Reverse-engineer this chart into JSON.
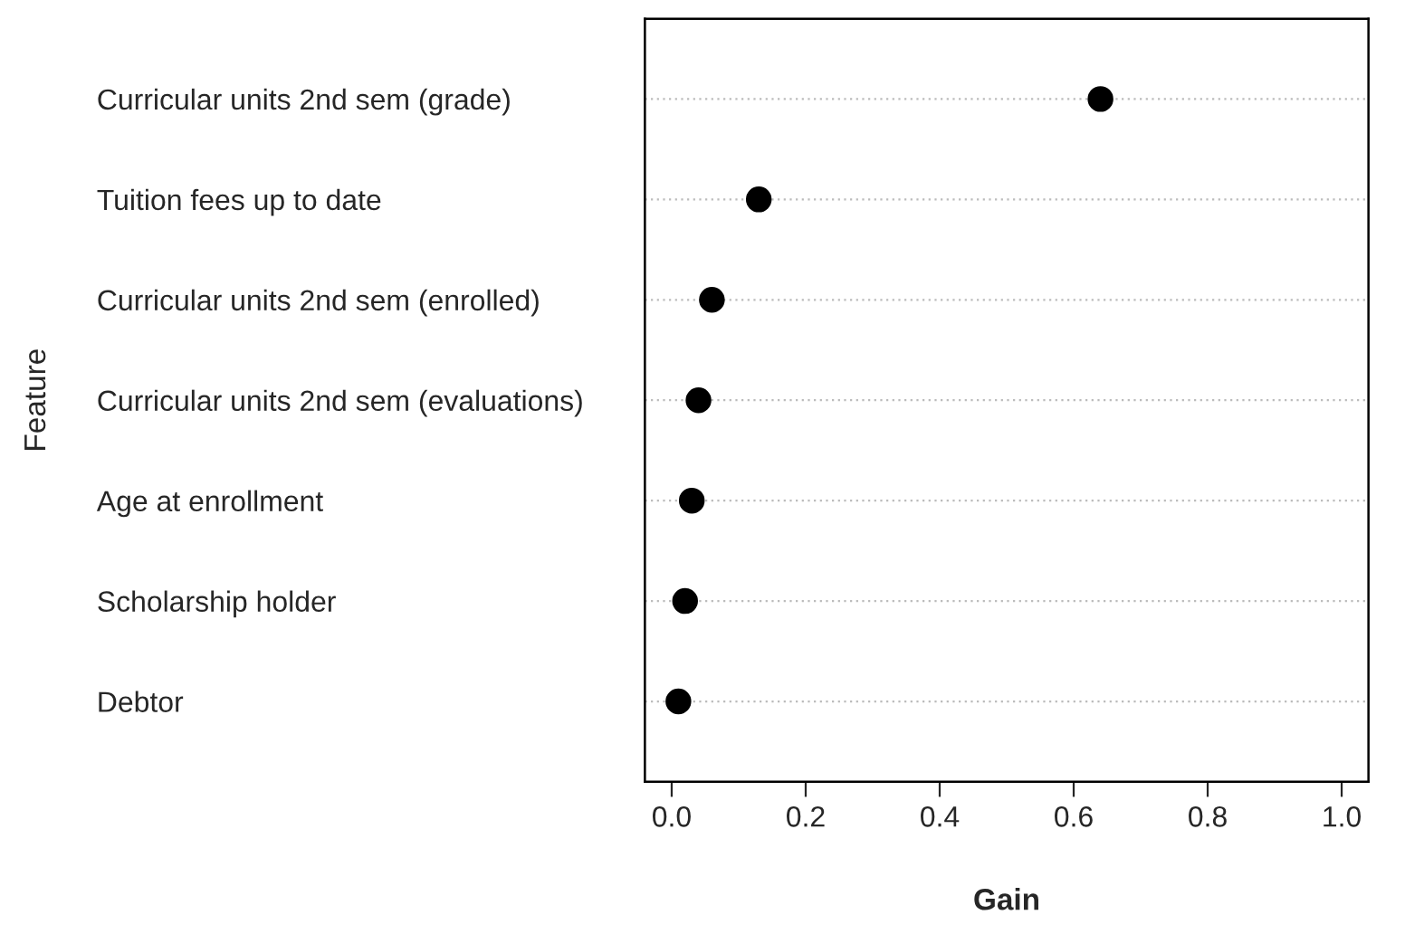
{
  "chart_data": {
    "type": "scatter",
    "xlabel": "Gain",
    "ylabel": "Feature",
    "categories": [
      "Curricular units 2nd sem (grade)",
      "Tuition fees up to date",
      "Curricular units 2nd sem (enrolled)",
      "Curricular units 2nd sem (evaluations)",
      "Age at enrollment",
      "Scholarship holder",
      "Debtor"
    ],
    "values": [
      0.64,
      0.13,
      0.06,
      0.04,
      0.03,
      0.02,
      0.01
    ],
    "color": "#000000",
    "orientation": "horizontal",
    "xlim": [
      -0.04,
      1.04
    ],
    "xticks": [
      {
        "value": 0,
        "label": "0.0"
      },
      0.2,
      0.4,
      0.6,
      0.8,
      {
        "value": 1,
        "label": "1.0"
      }
    ],
    "grid": "y",
    "marker": "circle"
  }
}
